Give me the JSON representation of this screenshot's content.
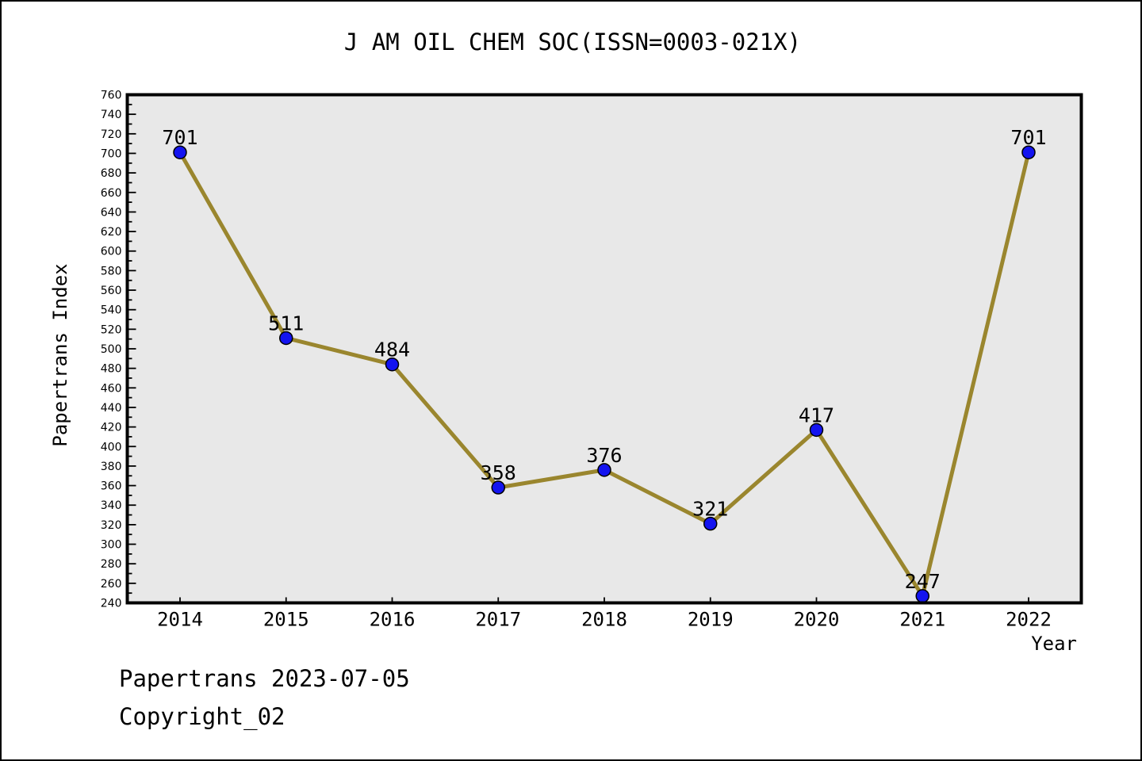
{
  "title": "J AM OIL CHEM SOC(ISSN=0003-021X)",
  "footer": {
    "line1": "Papertrans 2023-07-05",
    "line2": "Copyright_02"
  },
  "chart_data": {
    "type": "line",
    "title": "J AM OIL CHEM SOC(ISSN=0003-021X)",
    "categories": [
      "2014",
      "2015",
      "2016",
      "2017",
      "2018",
      "2019",
      "2020",
      "2021",
      "2022"
    ],
    "values": [
      701,
      511,
      484,
      358,
      376,
      321,
      417,
      247,
      701
    ],
    "point_labels": [
      "701",
      "511",
      "484",
      "358",
      "376",
      "321",
      "417",
      "247",
      "701"
    ],
    "xlabel": "Year",
    "ylabel": "Papertrans Index",
    "ylim": [
      240,
      760
    ],
    "y_major_step": 20,
    "y_minor_step": 10,
    "grid": false,
    "legend_position": "none",
    "colors": {
      "line": "#9A862E",
      "marker_fill": "#1414F0",
      "marker_edge": "#000000",
      "plot_background": "#E8E8E8",
      "figure_background": "#FFFFFF",
      "axis": "#000000",
      "text": "#000000"
    }
  }
}
